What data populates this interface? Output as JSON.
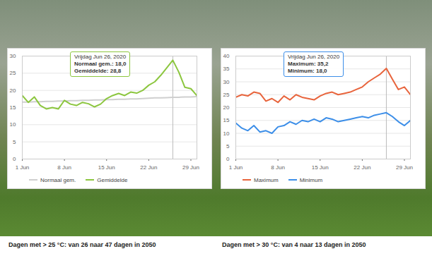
{
  "chart_data": [
    {
      "type": "line",
      "x": [
        "2020-06-01",
        "2020-06-02",
        "2020-06-03",
        "2020-06-04",
        "2020-06-05",
        "2020-06-06",
        "2020-06-07",
        "2020-06-08",
        "2020-06-09",
        "2020-06-10",
        "2020-06-11",
        "2020-06-12",
        "2020-06-13",
        "2020-06-14",
        "2020-06-15",
        "2020-06-16",
        "2020-06-17",
        "2020-06-18",
        "2020-06-19",
        "2020-06-20",
        "2020-06-21",
        "2020-06-22",
        "2020-06-23",
        "2020-06-24",
        "2020-06-25",
        "2020-06-26",
        "2020-06-27",
        "2020-06-28",
        "2020-06-29",
        "2020-06-30"
      ],
      "series": [
        {
          "name": "Normaal gem.",
          "color": "#cfcfcf",
          "values": [
            16.6,
            16.6,
            16.7,
            16.7,
            16.8,
            16.8,
            16.9,
            16.9,
            17.0,
            17.0,
            17.1,
            17.1,
            17.2,
            17.2,
            17.3,
            17.3,
            17.4,
            17.4,
            17.5,
            17.5,
            17.6,
            17.7,
            17.8,
            17.8,
            17.9,
            18.0,
            18.0,
            18.1,
            18.1,
            18.2
          ]
        },
        {
          "name": "Gemiddelde",
          "color": "#8cc63f",
          "values": [
            18.5,
            16.5,
            18.1,
            15.6,
            14.6,
            15.0,
            14.6,
            17.1,
            16.0,
            15.6,
            16.5,
            16.1,
            15.2,
            16.0,
            17.6,
            18.5,
            19.1,
            18.5,
            19.5,
            19.2,
            20.0,
            21.5,
            22.5,
            24.4,
            26.6,
            28.8,
            25.3,
            20.9,
            20.5,
            18.5
          ]
        }
      ],
      "xlim": [
        "2020-06-01",
        "2020-06-30"
      ],
      "xticks": [
        {
          "value": "2020-06-01",
          "label": "1 Jun"
        },
        {
          "value": "2020-06-08",
          "label": "8 Jun"
        },
        {
          "value": "2020-06-15",
          "label": "15 Jun"
        },
        {
          "value": "2020-06-22",
          "label": "22 Jun"
        },
        {
          "value": "2020-06-29",
          "label": "29 Jun"
        }
      ],
      "ylim": [
        0,
        30
      ],
      "yticks": [
        0,
        5,
        10,
        15,
        20,
        25,
        30
      ],
      "grid": true,
      "legend": "bottom",
      "tooltip": {
        "x": "2020-06-26",
        "lines": [
          "Vrijdag Jun 26, 2020",
          "Normaal gem.: 18,0",
          "Gemiddelde: 28,8"
        ]
      },
      "caption": "Dagen met > 25 °C: van 26 naar 47 dagen in 2050"
    },
    {
      "type": "line",
      "x": [
        "2020-06-01",
        "2020-06-02",
        "2020-06-03",
        "2020-06-04",
        "2020-06-05",
        "2020-06-06",
        "2020-06-07",
        "2020-06-08",
        "2020-06-09",
        "2020-06-10",
        "2020-06-11",
        "2020-06-12",
        "2020-06-13",
        "2020-06-14",
        "2020-06-15",
        "2020-06-16",
        "2020-06-17",
        "2020-06-18",
        "2020-06-19",
        "2020-06-20",
        "2020-06-21",
        "2020-06-22",
        "2020-06-23",
        "2020-06-24",
        "2020-06-25",
        "2020-06-26",
        "2020-06-27",
        "2020-06-28",
        "2020-06-29",
        "2020-06-30"
      ],
      "series": [
        {
          "name": "Maximum",
          "color": "#e8643c",
          "values": [
            24,
            25,
            24.5,
            26,
            25.5,
            22.5,
            23.5,
            22,
            24.5,
            23,
            25,
            24,
            23.5,
            23,
            24.5,
            25.5,
            26,
            25,
            25.5,
            26,
            27,
            28,
            30,
            31.5,
            33,
            35.2,
            31,
            27,
            28,
            25
          ]
        },
        {
          "name": "Minimum",
          "color": "#3c8ee8",
          "values": [
            14,
            12,
            11,
            13,
            10.5,
            11,
            10,
            12.5,
            13,
            14.5,
            13.5,
            15,
            14.5,
            15.5,
            14.5,
            16,
            15.5,
            14.5,
            15,
            15.5,
            16,
            16.5,
            16,
            17,
            17.5,
            18.0,
            16.5,
            14.5,
            13,
            15
          ]
        }
      ],
      "xlim": [
        "2020-06-01",
        "2020-06-30"
      ],
      "xticks": [
        {
          "value": "2020-06-01",
          "label": "1 Jun"
        },
        {
          "value": "2020-06-08",
          "label": "8 Jun"
        },
        {
          "value": "2020-06-15",
          "label": "15 Jun"
        },
        {
          "value": "2020-06-22",
          "label": "22 Jun"
        },
        {
          "value": "2020-06-29",
          "label": "29 Jun"
        }
      ],
      "ylim": [
        0,
        40
      ],
      "yticks": [
        0,
        5,
        10,
        15,
        20,
        25,
        30,
        35,
        40
      ],
      "grid": true,
      "legend": "bottom",
      "tooltip": {
        "x": "2020-06-26",
        "lines": [
          "Vrijdag Jun 26, 2020",
          "Maximum: 35,2",
          "Minimum: 18,0"
        ]
      },
      "caption": "Dagen met > 30 °C: van 4 naar 13 dagen in 2050"
    }
  ]
}
